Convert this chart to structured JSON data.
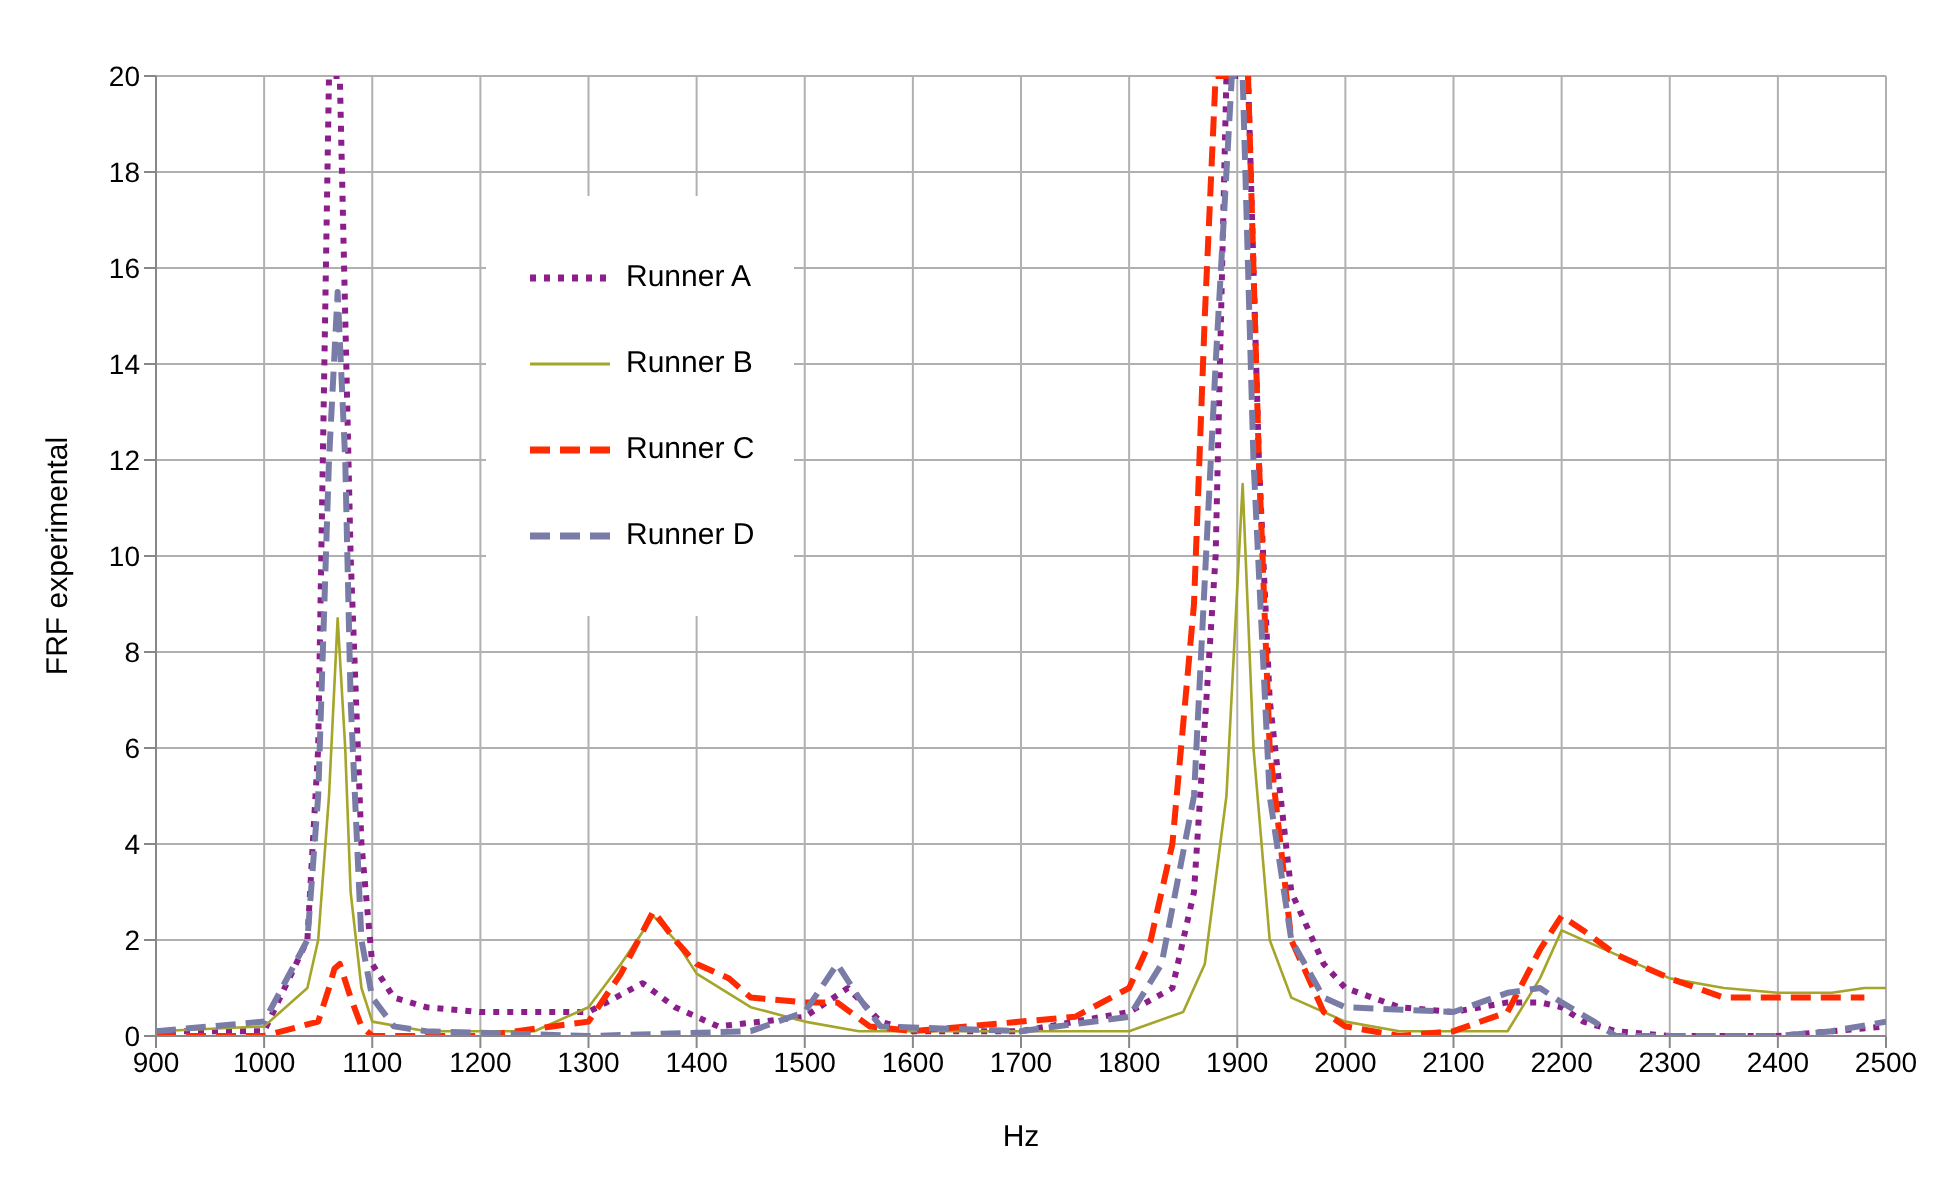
{
  "chart_data": {
    "type": "line",
    "xlabel": "Hz",
    "ylabel": "FRF experimental",
    "xlim": [
      900,
      2500
    ],
    "xticks": [
      900,
      1000,
      1100,
      1200,
      1300,
      1400,
      1500,
      1600,
      1700,
      1800,
      1900,
      2000,
      2100,
      2200,
      2300,
      2400,
      2500
    ],
    "ylim": [
      0,
      20
    ],
    "yticks": [
      0,
      2,
      4,
      6,
      8,
      10,
      12,
      14,
      16,
      18,
      20
    ],
    "grid": true,
    "legend": "top left",
    "series": [
      {
        "name": "Runner A",
        "color": "#8b1e8b",
        "line_style": "dotted",
        "x": [
          900,
          1000,
          1040,
          1050,
          1060,
          1070,
          1080,
          1090,
          1100,
          1120,
          1150,
          1200,
          1250,
          1300,
          1350,
          1380,
          1420,
          1500,
          1540,
          1570,
          1600,
          1700,
          1800,
          1840,
          1860,
          1880,
          1890,
          1910,
          1920,
          1930,
          1950,
          1980,
          2000,
          2050,
          2100,
          2150,
          2180,
          2200,
          2220,
          2250,
          2300,
          2400,
          2450,
          2500
        ],
        "values": [
          0.1,
          0.1,
          2,
          6,
          20,
          20,
          10,
          4,
          1.5,
          0.8,
          0.6,
          0.5,
          0.5,
          0.5,
          1.1,
          0.6,
          0.2,
          0.4,
          1.0,
          0.3,
          0.1,
          0.1,
          0.5,
          1,
          3,
          10,
          20,
          20,
          12,
          7,
          3,
          1.5,
          1.0,
          0.6,
          0.5,
          0.7,
          0.7,
          0.6,
          0.3,
          0.1,
          0,
          0,
          0.1,
          0.2
        ]
      },
      {
        "name": "Runner B",
        "color": "#a5a52a",
        "line_style": "solid",
        "x": [
          900,
          1000,
          1040,
          1050,
          1060,
          1068,
          1075,
          1080,
          1090,
          1100,
          1150,
          1250,
          1300,
          1330,
          1360,
          1380,
          1400,
          1450,
          1500,
          1550,
          1800,
          1850,
          1870,
          1890,
          1905,
          1915,
          1930,
          1950,
          2000,
          2050,
          2150,
          2180,
          2200,
          2250,
          2300,
          2350,
          2400,
          2450,
          2480,
          2500
        ],
        "values": [
          0.1,
          0.2,
          1.0,
          2,
          5,
          8.7,
          6,
          3,
          1,
          0.3,
          0.1,
          0.1,
          0.6,
          1.5,
          2.5,
          2.0,
          1.3,
          0.6,
          0.3,
          0.1,
          0.1,
          0.5,
          1.5,
          5,
          11.5,
          6,
          2,
          0.8,
          0.3,
          0.1,
          0.1,
          1.2,
          2.2,
          1.7,
          1.2,
          1.0,
          0.9,
          0.9,
          1.0,
          1.0
        ]
      },
      {
        "name": "Runner C",
        "color": "#ff2a00",
        "line_style": "dashed",
        "x": [
          900,
          1000,
          1050,
          1060,
          1065,
          1070,
          1080,
          1090,
          1100,
          1200,
          1300,
          1330,
          1360,
          1380,
          1400,
          1430,
          1450,
          1500,
          1530,
          1560,
          1600,
          1700,
          1750,
          1800,
          1820,
          1840,
          1860,
          1870,
          1880,
          1910,
          1920,
          1930,
          1950,
          1980,
          2000,
          2050,
          2100,
          2150,
          2180,
          2200,
          2220,
          2250,
          2300,
          2350,
          2400,
          2450,
          2480
        ],
        "values": [
          0,
          0,
          0.3,
          1.0,
          1.4,
          1.5,
          0.8,
          0.2,
          0,
          0,
          0.3,
          1.3,
          2.6,
          2.0,
          1.5,
          1.2,
          0.8,
          0.7,
          0.7,
          0.2,
          0.1,
          0.3,
          0.4,
          1.0,
          2,
          4,
          9,
          15,
          20,
          20,
          12,
          6,
          2,
          0.5,
          0.2,
          0,
          0.1,
          0.5,
          1.8,
          2.5,
          2.2,
          1.7,
          1.2,
          0.8,
          0.8,
          0.8,
          0.8
        ]
      },
      {
        "name": "Runner D",
        "color": "#7a7ca8",
        "line_style": "dashed",
        "x": [
          900,
          1000,
          1040,
          1050,
          1060,
          1068,
          1075,
          1080,
          1090,
          1100,
          1120,
          1150,
          1300,
          1450,
          1500,
          1530,
          1550,
          1570,
          1700,
          1800,
          1830,
          1860,
          1880,
          1895,
          1905,
          1915,
          1930,
          1950,
          1980,
          2000,
          2100,
          2150,
          2180,
          2200,
          2230,
          2250,
          2400,
          2450,
          2500
        ],
        "values": [
          0.1,
          0.3,
          2,
          5,
          12,
          15.5,
          12,
          7,
          2,
          0.8,
          0.2,
          0.1,
          0,
          0.1,
          0.5,
          1.5,
          0.8,
          0.2,
          0.1,
          0.4,
          1.5,
          5,
          14,
          20,
          20,
          12,
          5,
          2,
          0.8,
          0.6,
          0.5,
          0.9,
          1.0,
          0.7,
          0.3,
          0,
          0,
          0.1,
          0.3
        ]
      }
    ]
  }
}
